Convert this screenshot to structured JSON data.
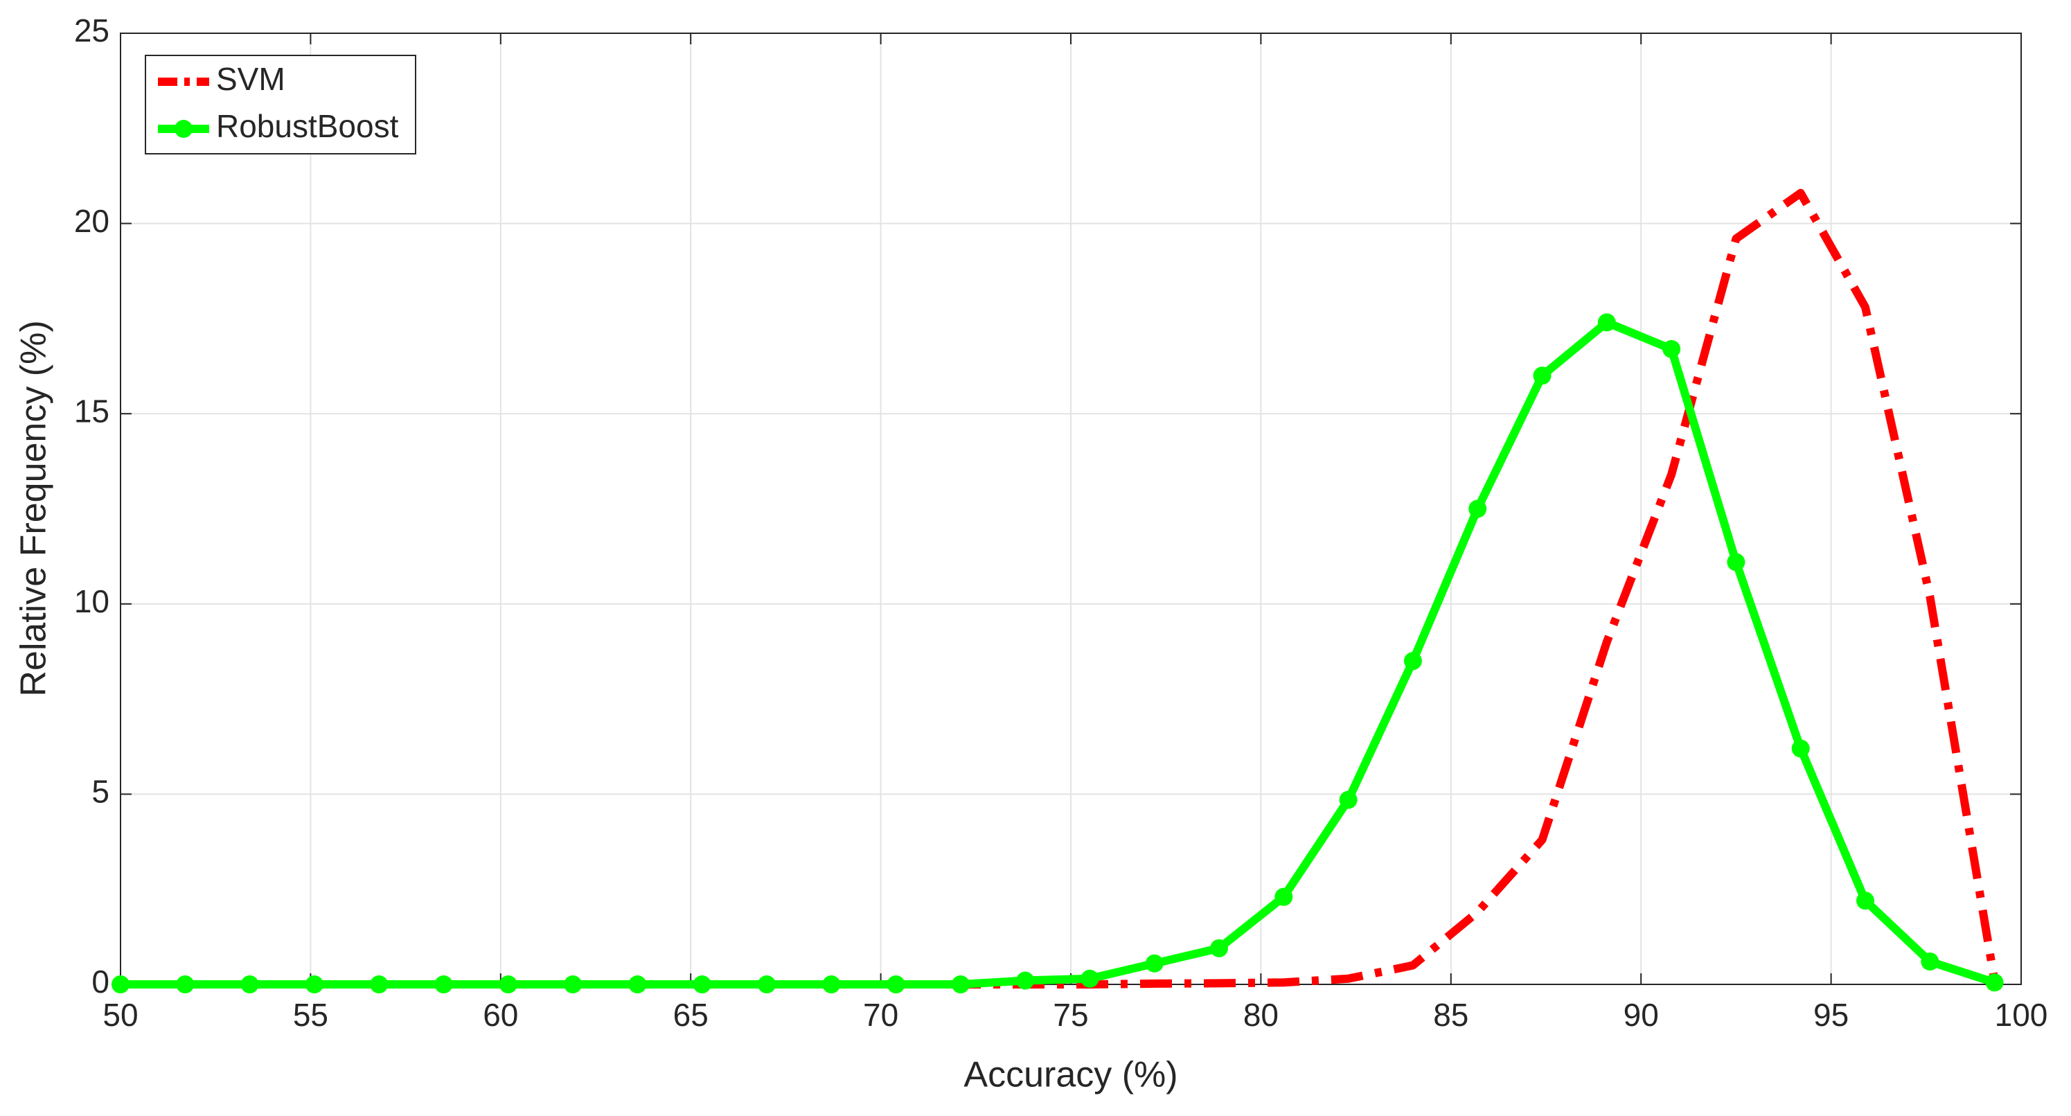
{
  "chart_data": {
    "type": "line",
    "xlabel": "Accuracy (%)",
    "ylabel": "Relative Frequency (%)",
    "x": [
      50,
      51.7,
      53.4,
      55.1,
      56.8,
      58.5,
      60.2,
      61.9,
      63.6,
      65.3,
      67.0,
      68.7,
      70.4,
      72.1,
      73.8,
      75.5,
      77.2,
      78.9,
      80.6,
      82.3,
      84.0,
      85.7,
      87.4,
      89.1,
      90.8,
      92.5,
      94.2,
      95.9,
      97.6,
      99.3
    ],
    "series": [
      {
        "name": "SVM",
        "color": "#ff0000",
        "linestyle": "dashdot",
        "marker": "none",
        "values": [
          0,
          0,
          0,
          0,
          0,
          0,
          0,
          0,
          0,
          0,
          0,
          0,
          0,
          0,
          0,
          0,
          0.02,
          0.03,
          0.05,
          0.15,
          0.5,
          1.9,
          3.8,
          9.0,
          13.4,
          19.6,
          20.8,
          17.8,
          10.2,
          0.1
        ]
      },
      {
        "name": "RobustBoost",
        "color": "#00ff00",
        "linestyle": "solid",
        "marker": "circle",
        "values": [
          0,
          0,
          0,
          0,
          0,
          0,
          0,
          0,
          0,
          0,
          0,
          0,
          0,
          0,
          0.1,
          0.15,
          0.55,
          0.95,
          2.3,
          4.85,
          8.5,
          12.5,
          16.0,
          17.4,
          16.7,
          11.1,
          6.2,
          2.2,
          0.6,
          0.05
        ]
      }
    ],
    "xlim": [
      50,
      100
    ],
    "xticks": [
      50,
      55,
      60,
      65,
      70,
      75,
      80,
      85,
      90,
      95,
      100
    ],
    "ylim": [
      0,
      25
    ],
    "yticks": [
      0,
      5,
      10,
      15,
      20,
      25
    ],
    "grid": true,
    "legend": "upper left"
  }
}
